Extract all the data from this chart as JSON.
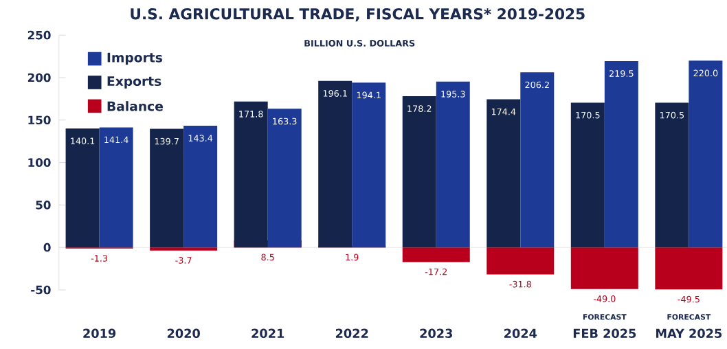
{
  "chart_data": {
    "type": "bar",
    "title": "U.S. AGRICULTURAL TRADE, FISCAL YEARS* 2019-2025",
    "subtitle": "BILLION U.S. DOLLARS",
    "categories": [
      "2019",
      "2020",
      "2021",
      "2022",
      "2023",
      "2024",
      "FEB 2025",
      "MAY 2025"
    ],
    "series": [
      {
        "name": "Balance",
        "color": "#b8001c",
        "values": [
          -1.3,
          -3.7,
          8.5,
          1.9,
          -17.2,
          -31.8,
          -49.0,
          -49.5
        ],
        "value_labels": [
          "-1.3",
          "-3.7",
          "8.5",
          "1.9",
          "-17.2",
          "-31.8",
          "-49.0",
          "-49.5"
        ]
      },
      {
        "name": "Exports",
        "color": "#15244a",
        "values": [
          140.1,
          139.7,
          171.8,
          196.1,
          178.2,
          174.4,
          170.5,
          170.5
        ],
        "value_labels": [
          "140.1",
          "139.7",
          "171.8",
          "196.1",
          "178.2",
          "174.4",
          "170.5",
          "170.5"
        ]
      },
      {
        "name": "Imports",
        "color": "#1d3b96",
        "values": [
          141.4,
          143.4,
          163.3,
          194.1,
          195.3,
          206.2,
          219.5,
          220.0
        ],
        "value_labels": [
          "141.4",
          "143.4",
          "163.3",
          "194.1",
          "195.3",
          "206.2",
          "219.5",
          "220.0"
        ]
      }
    ],
    "annotations": [
      "FORECAST",
      "FORECAST"
    ],
    "ylim": [
      -50,
      250
    ],
    "yticks": [
      -50,
      0,
      50,
      100,
      150,
      200,
      250
    ],
    "ref_lines": [
      {
        "axis": "y",
        "value": 0,
        "color": "#e3e3e3"
      }
    ],
    "legend": "top left",
    "grid": false
  }
}
